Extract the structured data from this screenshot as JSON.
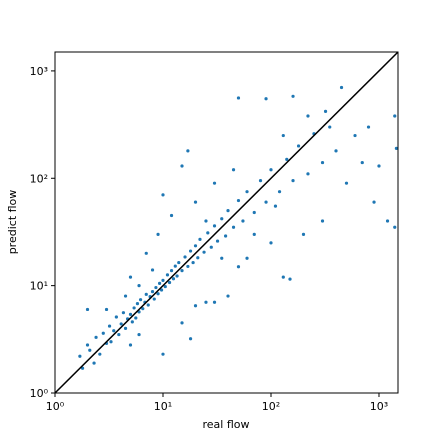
{
  "chart_data": {
    "type": "scatter",
    "x_label": "real flow",
    "y_label": "predict flow",
    "log_x": true,
    "log_y": true,
    "xlim": [
      1,
      1500
    ],
    "ylim": [
      1,
      1500
    ],
    "xticks": [
      {
        "value": 1,
        "label": "10⁰"
      },
      {
        "value": 10,
        "label": "10¹"
      },
      {
        "value": 100,
        "label": "10²"
      },
      {
        "value": 1000,
        "label": "10³"
      }
    ],
    "yticks": [
      {
        "value": 1,
        "label": "10⁰"
      },
      {
        "value": 10,
        "label": "10¹"
      },
      {
        "value": 100,
        "label": "10²"
      },
      {
        "value": 1000,
        "label": "10³"
      }
    ],
    "color": "#1f77b4",
    "reference_line": {
      "x": [
        1,
        1500
      ],
      "y": [
        1,
        1500
      ],
      "color": "#000000"
    },
    "x": [
      1.7,
      1.8,
      2,
      2.1,
      2.3,
      2.4,
      2.6,
      2.8,
      3,
      3.2,
      3.3,
      3.5,
      3.7,
      3.9,
      4.1,
      4.3,
      4.5,
      4.7,
      5,
      5.2,
      5.4,
      5.6,
      5.8,
      6,
      6.2,
      6.5,
      6.8,
      7,
      7.3,
      7.6,
      8,
      8.3,
      8.6,
      9,
      9.3,
      9.7,
      10,
      10.5,
      11,
      11.5,
      12,
      12.5,
      13,
      13.5,
      14,
      15,
      16,
      17,
      18,
      19,
      20,
      21,
      22,
      24,
      26,
      28,
      30,
      32,
      35,
      38,
      40,
      45,
      50,
      55,
      60,
      70,
      80,
      90,
      100,
      120,
      140,
      160,
      180,
      220,
      250,
      300,
      350,
      400,
      500,
      600,
      700,
      900,
      1200,
      1400,
      1450,
      1400,
      1000,
      800,
      300,
      200,
      130,
      150,
      100,
      60,
      50,
      40,
      30,
      25,
      20,
      15,
      10,
      18,
      8,
      6,
      4.5,
      3,
      17,
      15,
      10,
      12,
      20,
      30,
      45,
      50,
      90,
      160,
      320,
      450,
      220,
      130,
      9,
      7,
      5,
      2,
      25,
      35,
      70,
      110,
      6,
      5
    ],
    "values": [
      2.2,
      1.7,
      2.8,
      2.5,
      1.9,
      3.3,
      2.3,
      3.6,
      2.9,
      4.2,
      3.0,
      3.8,
      5.1,
      3.5,
      4.4,
      5.6,
      4.0,
      4.9,
      5.4,
      4.6,
      6.2,
      5.0,
      6.8,
      5.7,
      7.4,
      6.1,
      7.0,
      8.3,
      6.6,
      7.9,
      8.8,
      7.5,
      9.6,
      8.4,
      10.5,
      9.1,
      11.2,
      9.8,
      12.6,
      10.7,
      13.8,
      11.6,
      15.2,
      12.3,
      16.4,
      13.8,
      18.5,
      15.1,
      21,
      16.4,
      23.5,
      18.2,
      27,
      20.5,
      31,
      22.8,
      36,
      26,
      42,
      29,
      50,
      35,
      62,
      40,
      75,
      48,
      95,
      60,
      120,
      75,
      150,
      95,
      200,
      110,
      260,
      140,
      300,
      180,
      90,
      250,
      140,
      60,
      40,
      35,
      190,
      380,
      130,
      300,
      40,
      30,
      12,
      11.5,
      25,
      18,
      15,
      8,
      7,
      7,
      6.5,
      4.5,
      2.3,
      3.2,
      14,
      10,
      8,
      6,
      180,
      130,
      70,
      45,
      60,
      90,
      120,
      560,
      550,
      580,
      420,
      700,
      380,
      250,
      30,
      20,
      12,
      6,
      40,
      18,
      30,
      55,
      3.5,
      2.8
    ]
  }
}
